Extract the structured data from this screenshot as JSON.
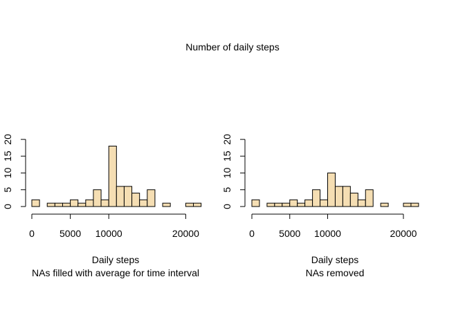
{
  "main_title": "Number of daily steps",
  "panels": [
    {
      "xlabel": "Daily steps",
      "subtitle": "NAs filled with average for time interval",
      "x_ticks": [
        "0",
        "5000",
        "10000",
        "20000"
      ],
      "y_ticks": [
        "0",
        "5",
        "10",
        "15",
        "20"
      ]
    },
    {
      "xlabel": "Daily steps",
      "subtitle": "NAs removed",
      "x_ticks": [
        "0",
        "5000",
        "10000",
        "20000"
      ],
      "y_ticks": [
        "0",
        "5",
        "10",
        "15",
        "20"
      ]
    }
  ],
  "colors": {
    "bar_fill": "#F5DEB3",
    "bar_stroke": "#000000",
    "axis": "#000000"
  },
  "chart_data": [
    {
      "type": "bar",
      "title": "Number of daily steps",
      "xlabel": "Daily steps",
      "subtitle": "NAs filled with average for time interval",
      "bin_width": 1000,
      "x_start": 0,
      "values": [
        2,
        0,
        1,
        1,
        1,
        2,
        1,
        2,
        5,
        2,
        18,
        6,
        6,
        4,
        2,
        5,
        0,
        1,
        0,
        0,
        1,
        1
      ],
      "xlim": [
        0,
        22000
      ],
      "ylim": [
        0,
        20
      ],
      "x_tick_values": [
        0,
        5000,
        10000,
        20000
      ],
      "y_tick_values": [
        0,
        5,
        10,
        15,
        20
      ],
      "grid": false
    },
    {
      "type": "bar",
      "title": "Number of daily steps",
      "xlabel": "Daily steps",
      "subtitle": "NAs removed",
      "bin_width": 1000,
      "x_start": 0,
      "values": [
        2,
        0,
        1,
        1,
        1,
        2,
        1,
        2,
        5,
        2,
        10,
        6,
        6,
        4,
        2,
        5,
        0,
        1,
        0,
        0,
        1,
        1
      ],
      "xlim": [
        0,
        22000
      ],
      "ylim": [
        0,
        20
      ],
      "x_tick_values": [
        0,
        5000,
        10000,
        20000
      ],
      "y_tick_values": [
        0,
        5,
        10,
        15,
        20
      ],
      "grid": false
    }
  ]
}
